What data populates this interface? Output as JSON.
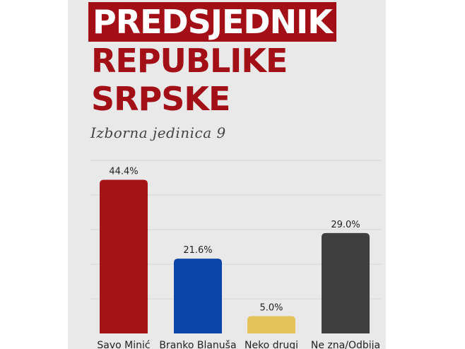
{
  "header": {
    "title_line1": "PREDSJEDNIK",
    "title_line2": "REPUBLIKE",
    "title_line3": "SRPSKE",
    "subtitle": "Izborna jedinica 9"
  },
  "colors": {
    "accent": "#a30f16",
    "panel_bg": "#e9e9e9"
  },
  "chart_data": {
    "type": "bar",
    "categories": [
      "Savo Minić",
      "Branko Blanuša",
      "Neko drugi",
      "Ne zna/Odbija"
    ],
    "values": [
      44.4,
      21.6,
      5.0,
      29.0
    ],
    "value_labels": [
      "44.4%",
      "21.6%",
      "5.0%",
      "29.0%"
    ],
    "colors": [
      "#a31418",
      "#0c45a8",
      "#e3c35a",
      "#3f3f3f"
    ],
    "ylim": [
      0,
      50
    ],
    "grid": true,
    "legend": "none"
  }
}
